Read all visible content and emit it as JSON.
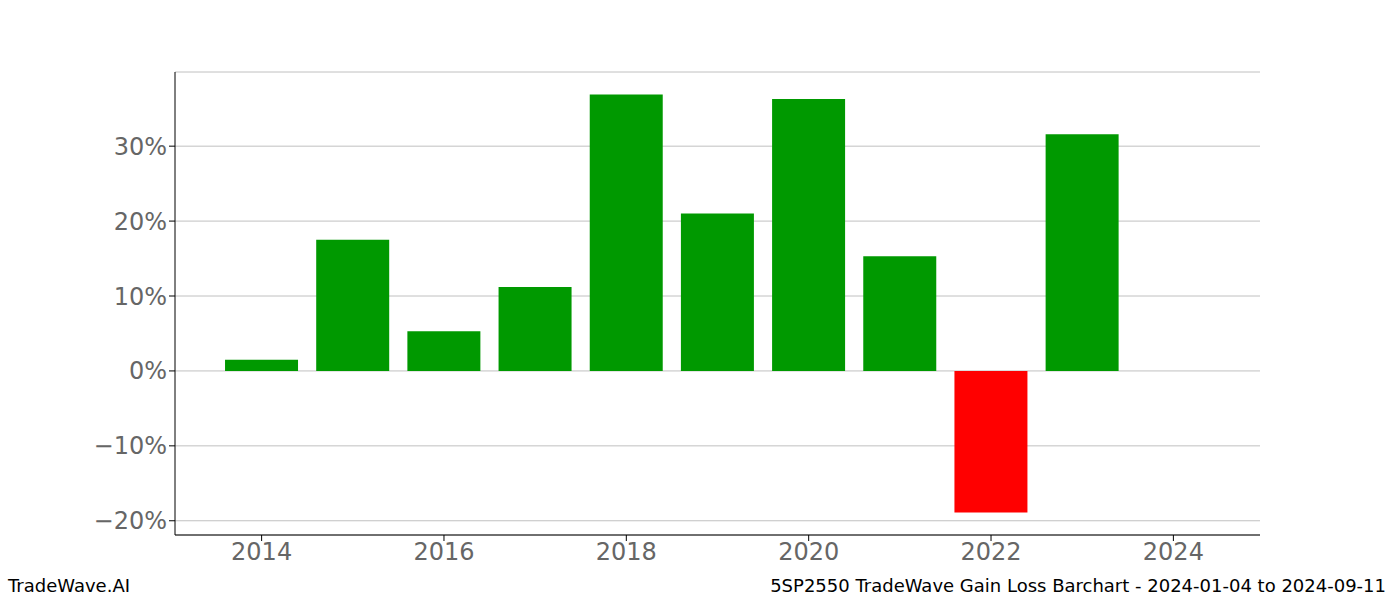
{
  "chart_data": {
    "type": "bar",
    "x": [
      2014,
      2015,
      2016,
      2017,
      2018,
      2019,
      2020,
      2021,
      2022,
      2023
    ],
    "values": [
      1.5,
      17.5,
      5.3,
      11.2,
      36.9,
      21.0,
      36.3,
      15.3,
      -18.9,
      31.6
    ],
    "colors": [
      "#009900",
      "#009900",
      "#009900",
      "#009900",
      "#009900",
      "#009900",
      "#009900",
      "#009900",
      "#ff0000",
      "#009900"
    ],
    "xlim": [
      2013.05,
      2024.95
    ],
    "xticks": [
      2014,
      2016,
      2018,
      2020,
      2022,
      2024
    ],
    "ylim": [
      -21.9,
      39.9
    ],
    "yticks": [
      {
        "value": -20,
        "label": "−20%"
      },
      {
        "value": -10,
        "label": "−10%"
      },
      {
        "value": 0,
        "label": "0%"
      },
      {
        "value": 10,
        "label": "10%"
      },
      {
        "value": 20,
        "label": "20%"
      },
      {
        "value": 30,
        "label": "30%"
      }
    ],
    "grid": true,
    "annotations": [
      "TradeWave.AI",
      "5SP2550 TradeWave Gain Loss Barchart - 2024-01-04 to 2024-09-11"
    ]
  }
}
